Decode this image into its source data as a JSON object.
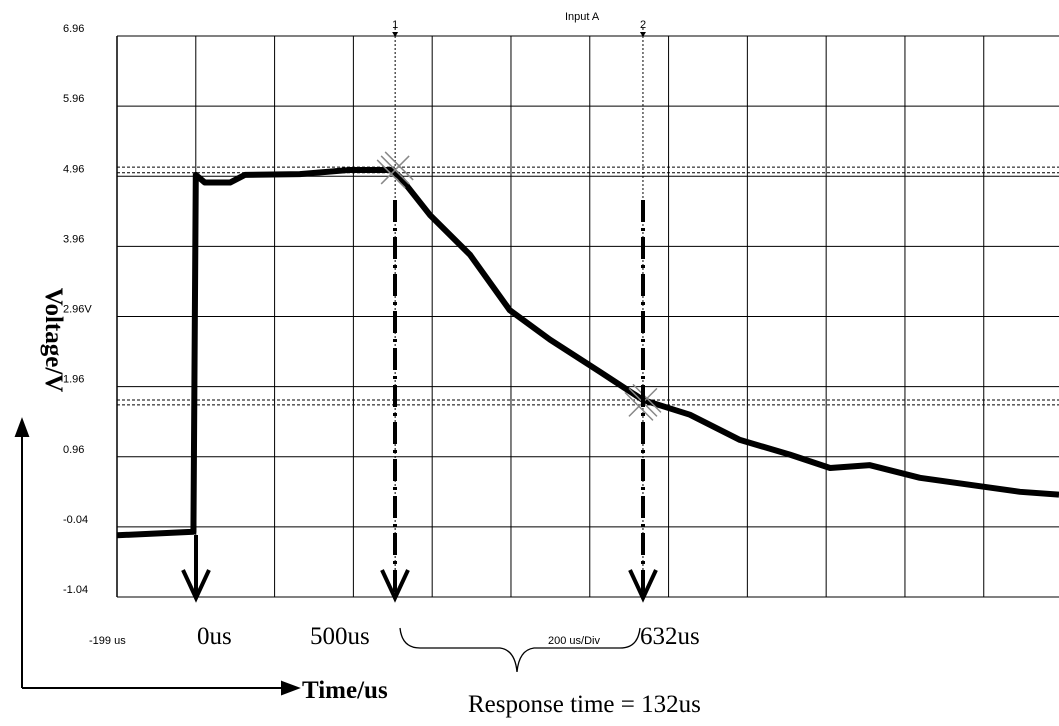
{
  "chart_data": {
    "type": "line",
    "title": "Input A",
    "y_label": "Voltage/V",
    "x_label": "Time/us",
    "x_scale_label": "200 us/Div",
    "xlim": [
      -199,
      2192
    ],
    "ylim": [
      -1.04,
      6.96
    ],
    "xticks": [
      {
        "value": -199,
        "label": "-199 us"
      }
    ],
    "xgrid": [
      1,
      201,
      401,
      601,
      801,
      1001,
      1201,
      1401,
      1601,
      1801,
      2001
    ],
    "yticks": [
      6.96,
      5.96,
      4.96,
      3.96,
      {
        "value": 2.96,
        "label": "2.96V"
      },
      1.96,
      0.96,
      -0.04,
      -1.04
    ],
    "grid": true,
    "series": [
      {
        "color": "#000000",
        "x": [
          -199,
          -5,
          1,
          24,
          88,
          126,
          265,
          392,
          499,
          519,
          595,
          697,
          798,
          900,
          1027,
          1136,
          1255,
          1382,
          1509,
          1611,
          1712,
          1839,
          1966,
          2093,
          2192
        ],
        "values": [
          -0.16,
          -0.11,
          4.98,
          4.87,
          4.87,
          4.98,
          4.99,
          5.05,
          5.05,
          4.95,
          4.41,
          3.84,
          3.05,
          2.63,
          2.17,
          1.77,
          1.56,
          1.2,
          0.99,
          0.8,
          0.84,
          0.66,
          0.56,
          0.46,
          0.42
        ]
      }
    ],
    "cursors": [
      {
        "label": "1",
        "x": 507,
        "y": [
          5.09,
          5.01
        ]
      },
      {
        "label": "2",
        "x": 1136,
        "y": [
          1.77,
          1.7
        ]
      }
    ],
    "annotations": [
      "0us",
      "500us",
      "632us",
      "Response time = 132us"
    ]
  }
}
